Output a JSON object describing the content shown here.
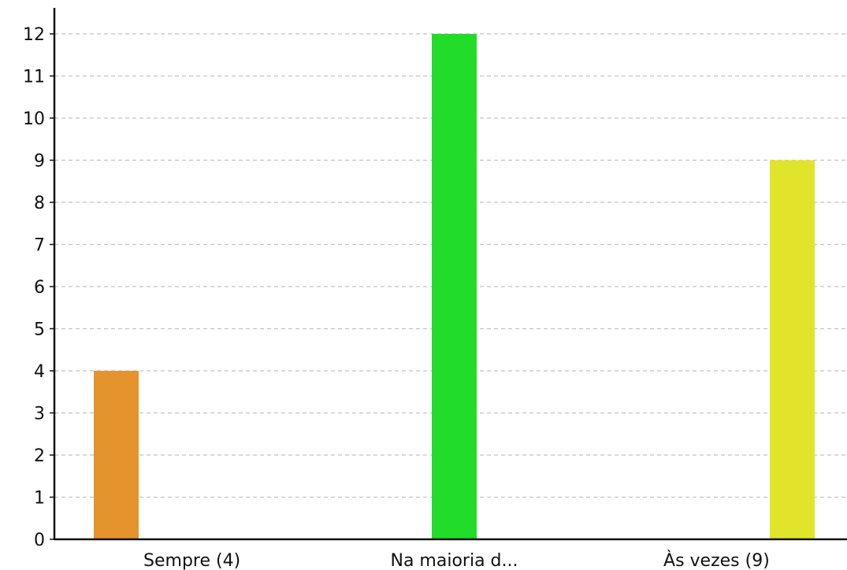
{
  "chart_data": {
    "type": "bar",
    "title": "",
    "xlabel": "",
    "ylabel": "",
    "categories": [
      "Sempre (4)",
      "Na maioria d...",
      "Às vezes (9)"
    ],
    "values": [
      4,
      12,
      9
    ],
    "colors": [
      "#e5932c",
      "#22dc2a",
      "#e0e42a"
    ],
    "ylim": [
      0,
      12
    ],
    "yticks": [
      0,
      1,
      2,
      3,
      4,
      5,
      6,
      7,
      8,
      9,
      10,
      11,
      12
    ],
    "grid": true,
    "legend": "none"
  }
}
